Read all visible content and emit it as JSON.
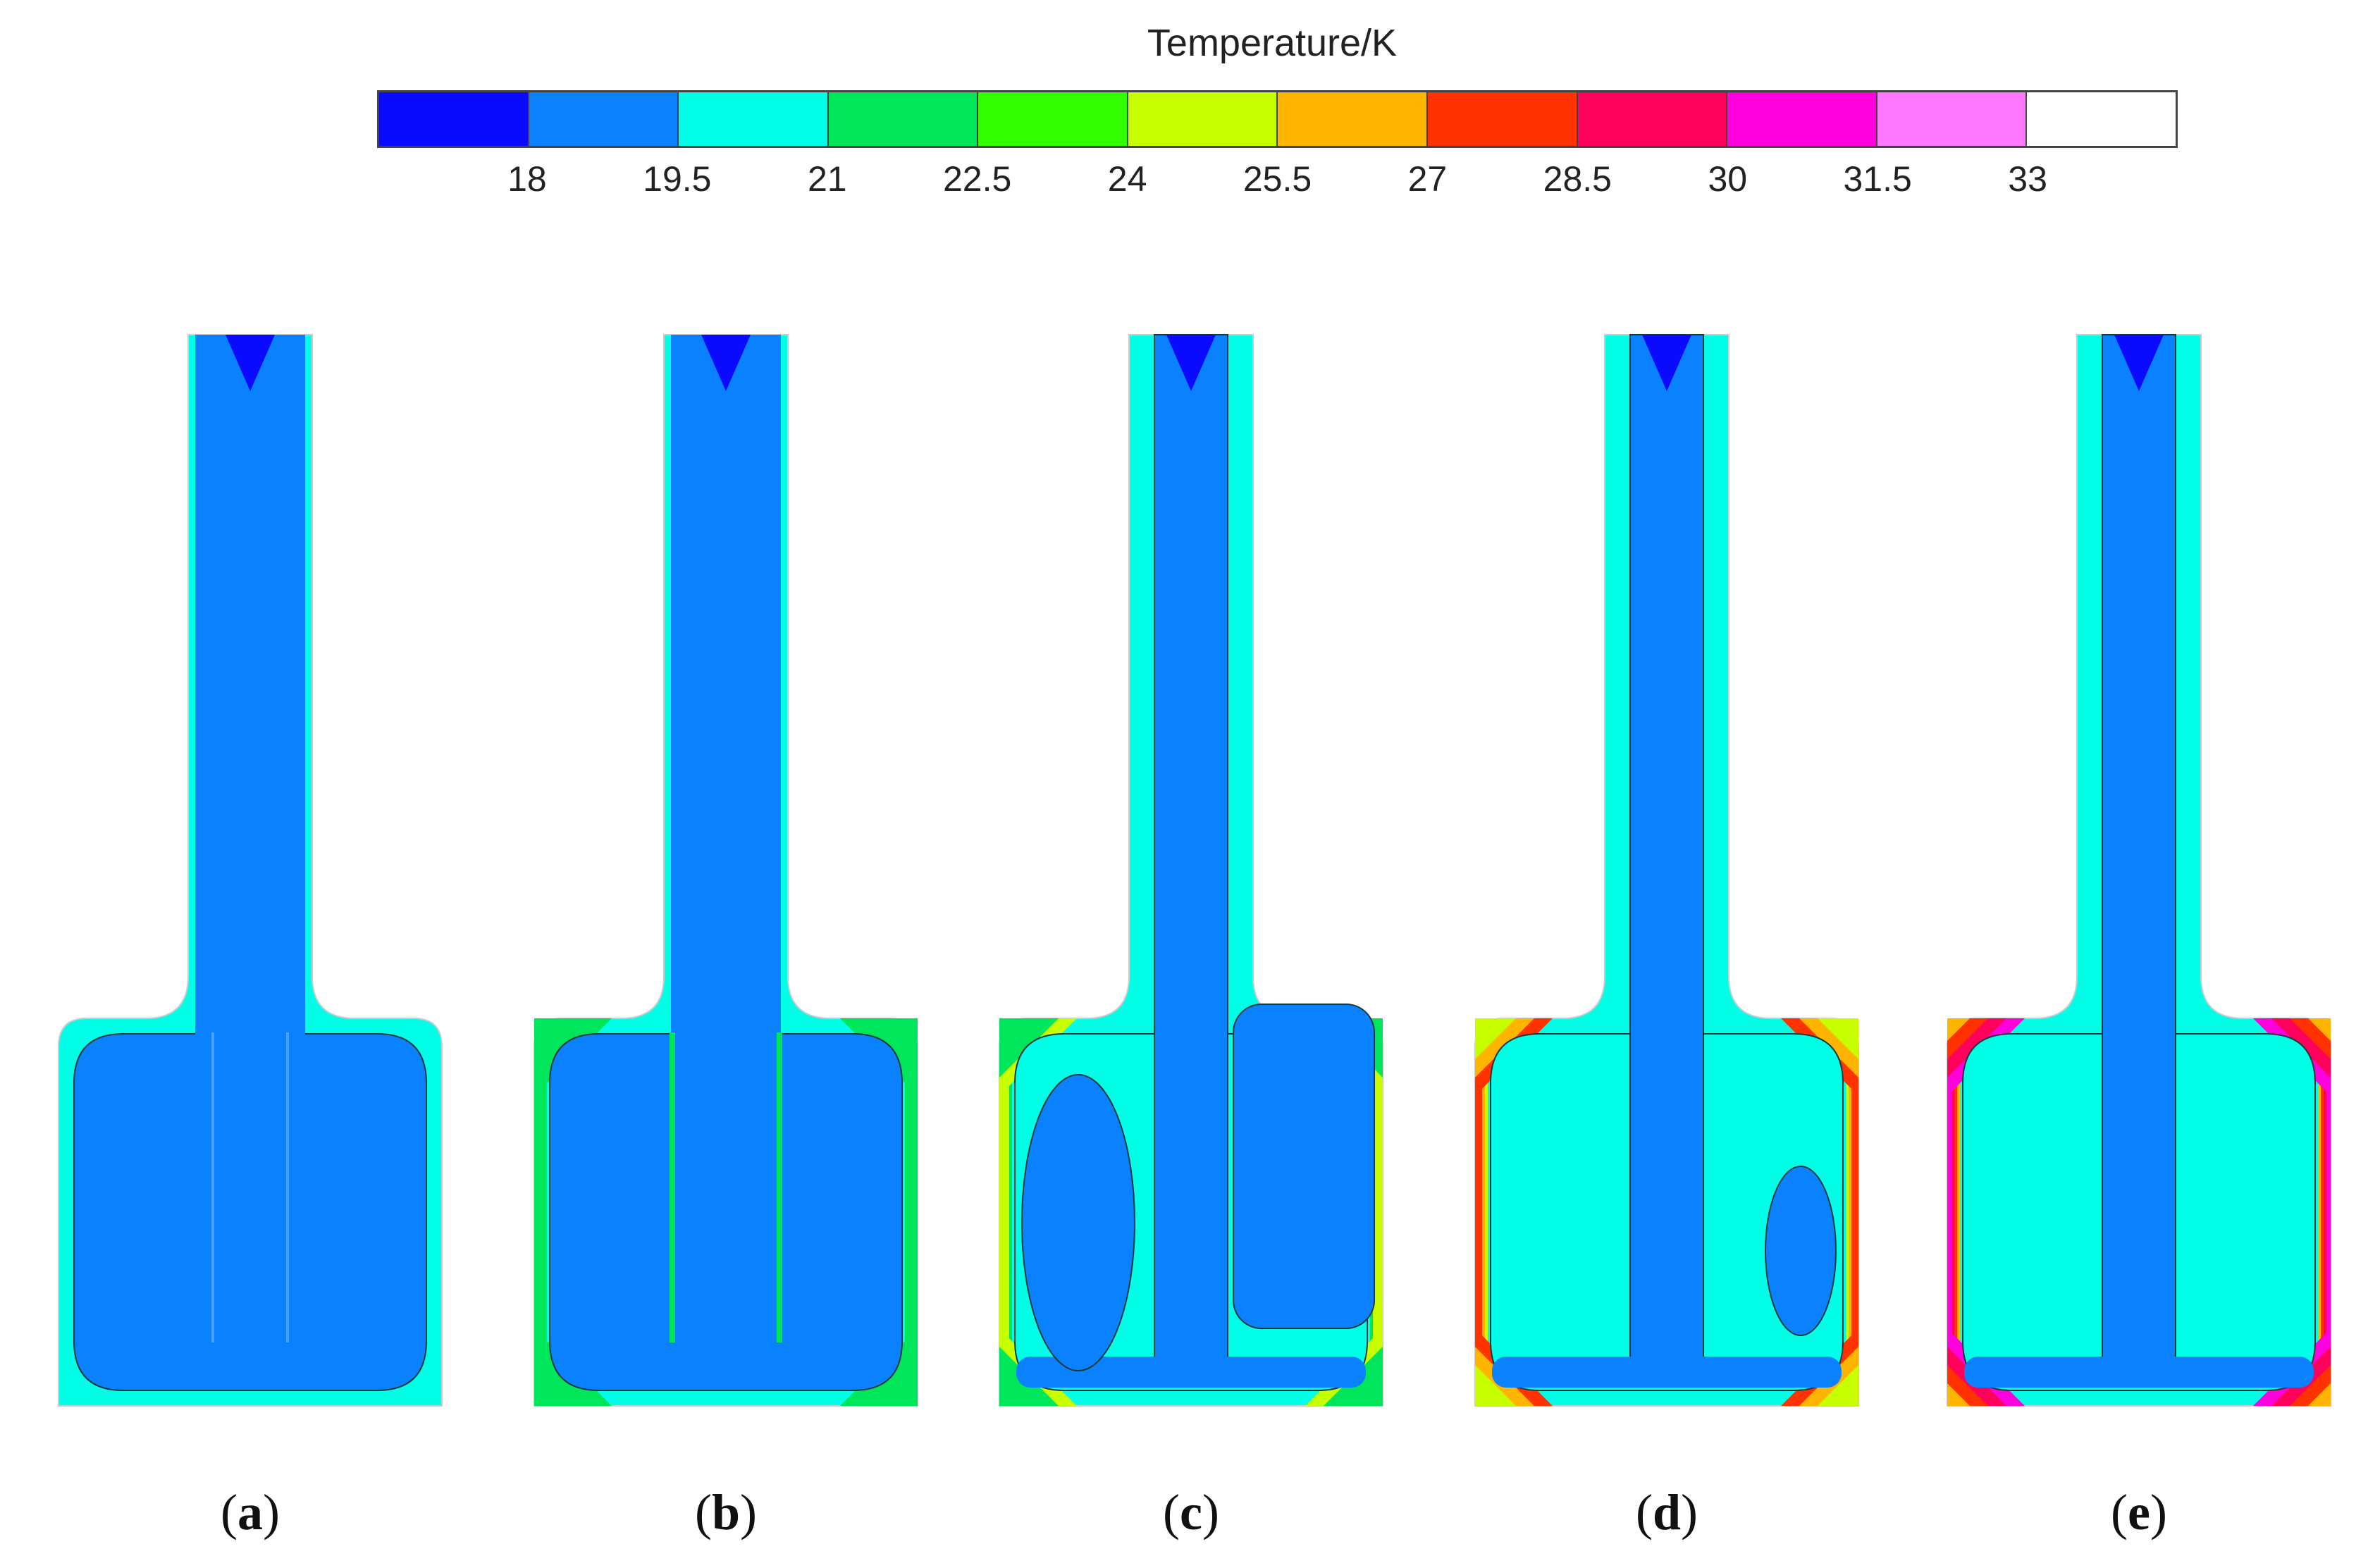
{
  "legend": {
    "title": "Temperature/K",
    "ticks": [
      "18",
      "19.5",
      "21",
      "22.5",
      "24",
      "25.5",
      "27",
      "28.5",
      "30",
      "31.5",
      "33"
    ],
    "band_colors": [
      "#0a0aff",
      "#0a82ff",
      "#00ffe6",
      "#00e65a",
      "#32ff00",
      "#c8ff00",
      "#ffb400",
      "#ff3200",
      "#ff005a",
      "#ff00dc",
      "#ff78ff",
      "#ffffff"
    ]
  },
  "panels": [
    {
      "letter": "a"
    },
    {
      "letter": "b"
    },
    {
      "letter": "c"
    },
    {
      "letter": "d"
    },
    {
      "letter": "e"
    }
  ],
  "colors": {
    "cold_core": "#0a0aff",
    "bulk": "#0a82ff",
    "warm_layer": "#00ffe6",
    "edge_green": "#00e65a",
    "edge_yellow": "#c8ff00",
    "edge_orange": "#ffb400",
    "edge_red": "#ff3200",
    "edge_crimson": "#ff005a",
    "edge_magenta": "#ff00dc",
    "contour_line": "#1a3a3a"
  }
}
